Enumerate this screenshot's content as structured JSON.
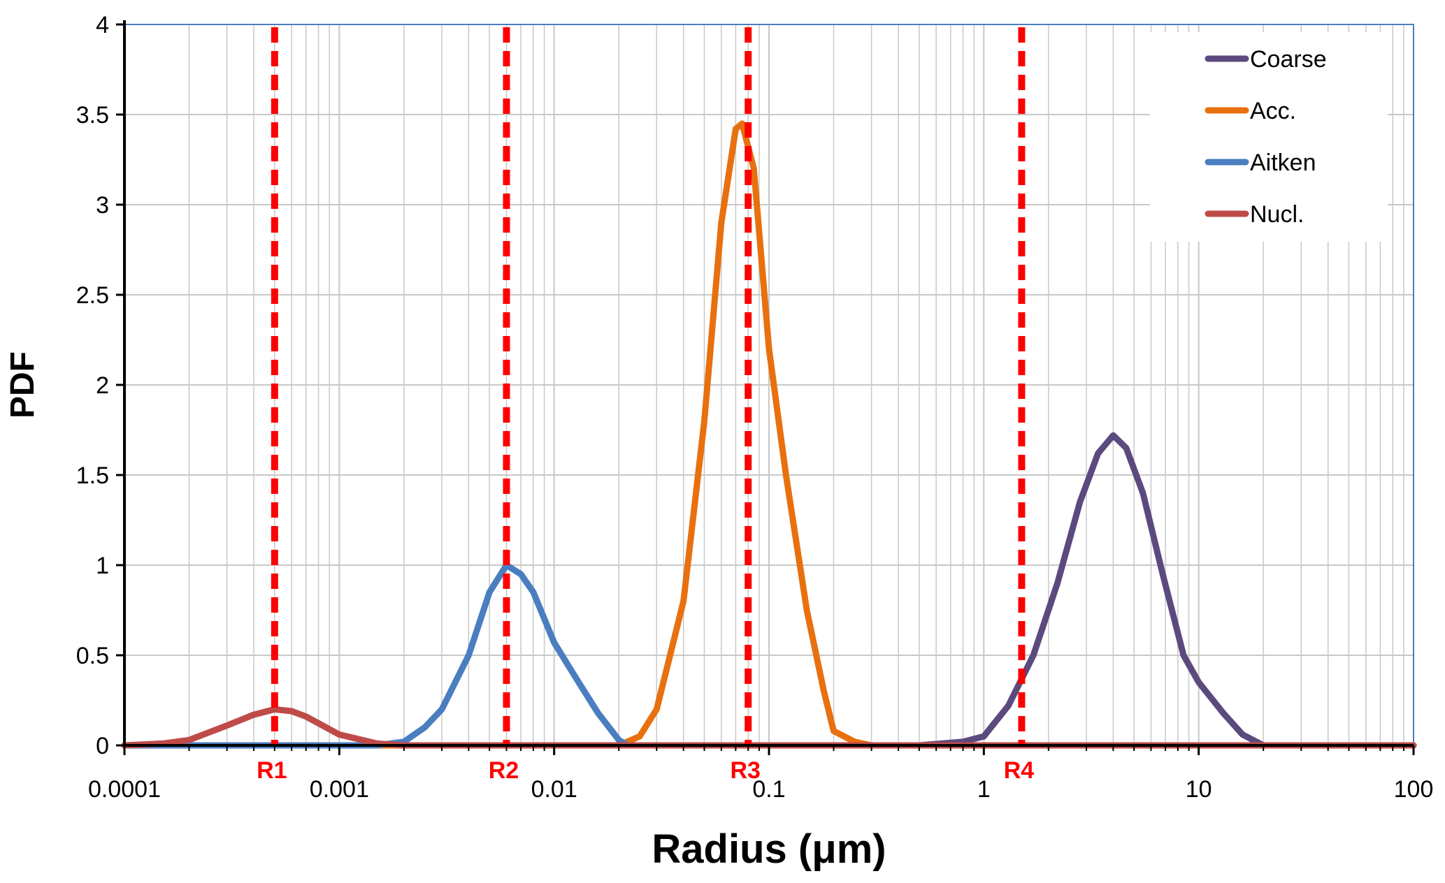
{
  "chart_data": {
    "type": "line",
    "title": "",
    "xlabel": "Radius (μm)",
    "ylabel": "PDF",
    "x_scale": "log",
    "xlim": [
      0.0001,
      100
    ],
    "ylim": [
      0,
      4
    ],
    "grid": true,
    "legend_position": "top-right",
    "x_tick_labels": [
      "0.0001",
      "0.001",
      "0.01",
      "0.1",
      "1",
      "10",
      "100"
    ],
    "x_ticks": [
      0.0001,
      0.001,
      0.01,
      0.1,
      1,
      10,
      100
    ],
    "y_tick_labels": [
      "0",
      "0.5",
      "1",
      "1.5",
      "2",
      "2.5",
      "3",
      "3.5",
      "4"
    ],
    "y_ticks": [
      0,
      0.5,
      1,
      1.5,
      2,
      2.5,
      3,
      3.5,
      4
    ],
    "series": [
      {
        "name": "Coarse",
        "color": "#5b4a7e",
        "points": [
          [
            0.0001,
            0
          ],
          [
            0.5,
            0.0
          ],
          [
            0.8,
            0.02
          ],
          [
            1.0,
            0.05
          ],
          [
            1.3,
            0.22
          ],
          [
            1.7,
            0.5
          ],
          [
            2.2,
            0.9
          ],
          [
            2.8,
            1.35
          ],
          [
            3.4,
            1.62
          ],
          [
            4.0,
            1.72
          ],
          [
            4.6,
            1.65
          ],
          [
            5.5,
            1.4
          ],
          [
            6.8,
            0.95
          ],
          [
            8.5,
            0.5
          ],
          [
            10,
            0.35
          ],
          [
            13,
            0.18
          ],
          [
            16,
            0.06
          ],
          [
            20,
            0.0
          ],
          [
            100,
            0
          ]
        ]
      },
      {
        "name": "Acc.",
        "color": "#e8700f",
        "points": [
          [
            0.0001,
            0
          ],
          [
            0.015,
            0.0
          ],
          [
            0.02,
            0.0
          ],
          [
            0.025,
            0.05
          ],
          [
            0.03,
            0.2
          ],
          [
            0.04,
            0.8
          ],
          [
            0.05,
            1.8
          ],
          [
            0.06,
            2.9
          ],
          [
            0.07,
            3.42
          ],
          [
            0.075,
            3.45
          ],
          [
            0.085,
            3.2
          ],
          [
            0.1,
            2.2
          ],
          [
            0.12,
            1.5
          ],
          [
            0.15,
            0.75
          ],
          [
            0.18,
            0.3
          ],
          [
            0.2,
            0.08
          ],
          [
            0.25,
            0.02
          ],
          [
            0.3,
            0.0
          ],
          [
            100,
            0
          ]
        ]
      },
      {
        "name": "Aitken",
        "color": "#4a7ebf",
        "points": [
          [
            0.0001,
            0
          ],
          [
            0.0015,
            0.0
          ],
          [
            0.002,
            0.02
          ],
          [
            0.0025,
            0.1
          ],
          [
            0.003,
            0.2
          ],
          [
            0.004,
            0.5
          ],
          [
            0.005,
            0.85
          ],
          [
            0.006,
            1.0
          ],
          [
            0.007,
            0.95
          ],
          [
            0.008,
            0.85
          ],
          [
            0.01,
            0.57
          ],
          [
            0.013,
            0.35
          ],
          [
            0.016,
            0.18
          ],
          [
            0.02,
            0.03
          ],
          [
            0.022,
            0.0
          ],
          [
            100,
            0
          ]
        ]
      },
      {
        "name": "Nucl.",
        "color": "#be4b48",
        "points": [
          [
            0.0001,
            0
          ],
          [
            0.00015,
            0.01
          ],
          [
            0.0002,
            0.03
          ],
          [
            0.0003,
            0.11
          ],
          [
            0.0004,
            0.17
          ],
          [
            0.0005,
            0.2
          ],
          [
            0.0006,
            0.19
          ],
          [
            0.0007,
            0.16
          ],
          [
            0.001,
            0.06
          ],
          [
            0.0015,
            0.01
          ],
          [
            0.002,
            0.0
          ],
          [
            100,
            0
          ]
        ]
      }
    ],
    "markers": [
      {
        "label": "R1",
        "x": 0.0005,
        "color": "#ff0000"
      },
      {
        "label": "R2",
        "x": 0.006,
        "color": "#ff0000"
      },
      {
        "label": "R3",
        "x": 0.08,
        "color": "#ff0000"
      },
      {
        "label": "R4",
        "x": 1.5,
        "color": "#ff0000"
      }
    ],
    "plot_border_color": "#4a7ebf",
    "grid_color": "#c8c8c8",
    "axis_color": "#000000"
  }
}
